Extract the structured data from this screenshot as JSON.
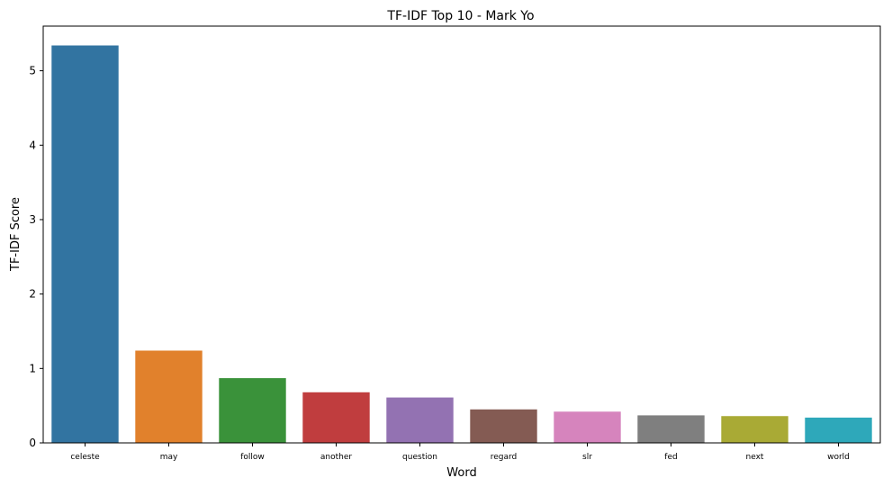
{
  "chart_data": {
    "type": "bar",
    "title": "TF-IDF Top 10 - Mark Yo",
    "xlabel": "Word",
    "ylabel": "TF-IDF Score",
    "categories": [
      "celeste",
      "may",
      "follow",
      "another",
      "question",
      "regard",
      "slr",
      "fed",
      "next",
      "world"
    ],
    "values": [
      5.34,
      1.24,
      0.87,
      0.68,
      0.61,
      0.45,
      0.42,
      0.37,
      0.36,
      0.34
    ],
    "colors": [
      "#3274a1",
      "#e1812c",
      "#3a923a",
      "#c03d3e",
      "#9372b2",
      "#845b53",
      "#d684bd",
      "#7f7f7f",
      "#a9aa35",
      "#2ea8ba"
    ],
    "ylim": [
      0,
      5.6
    ],
    "yticks": [
      0,
      1,
      2,
      3,
      4,
      5
    ],
    "grid": false,
    "legend": "none"
  }
}
